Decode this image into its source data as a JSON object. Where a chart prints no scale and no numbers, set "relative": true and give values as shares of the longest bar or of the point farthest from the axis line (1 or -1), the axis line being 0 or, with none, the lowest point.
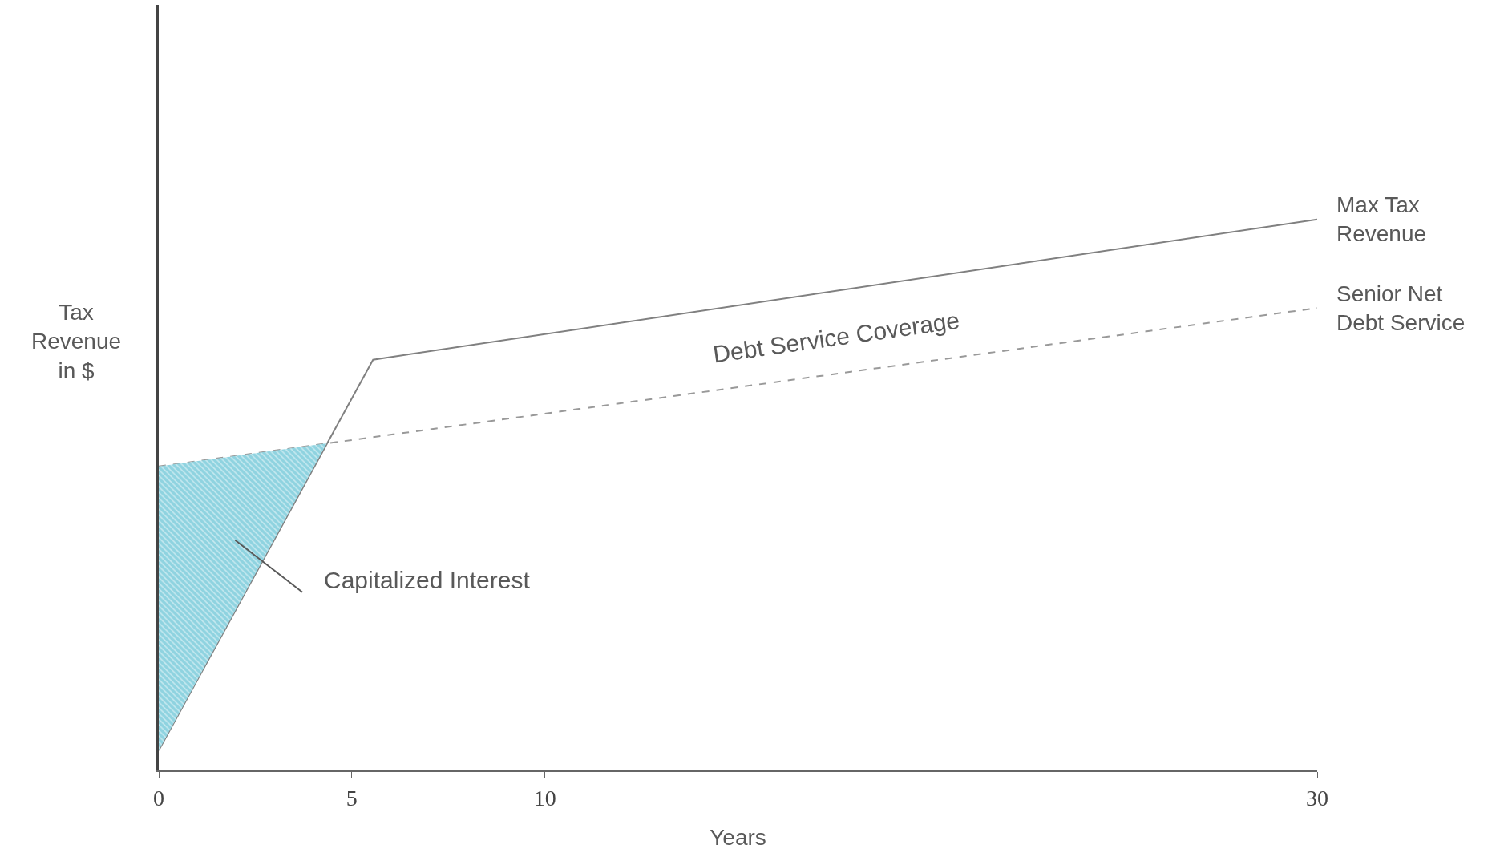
{
  "chart_data": {
    "type": "line",
    "relative": true,
    "xlabel": "Years",
    "ylabel": "Tax\nRevenue\nin $",
    "xlim": [
      0,
      30
    ],
    "xticks": [
      0,
      5,
      10,
      30
    ],
    "legend": false,
    "marker": "none",
    "series": [
      {
        "name": "Max Tax\nRevenue",
        "color": "#808080",
        "x": [
          0,
          5.55,
          30
        ],
        "values": [
          0.035,
          0.745,
          1
        ],
        "line_style": "solid"
      },
      {
        "name": "Senior Net\nDebt Service",
        "color": "#999999",
        "x": [
          0,
          30
        ],
        "values": [
          0.551,
          0.839
        ],
        "line_style": "dashed"
      },
      {
        "type": "area",
        "color": "#8fd3e0",
        "x": [
          0,
          4.35,
          0
        ],
        "values": [
          0.551,
          0.593,
          0.035
        ]
      }
    ],
    "annotations": [
      "Debt Service Coverage",
      "Capitalized Interest"
    ]
  }
}
